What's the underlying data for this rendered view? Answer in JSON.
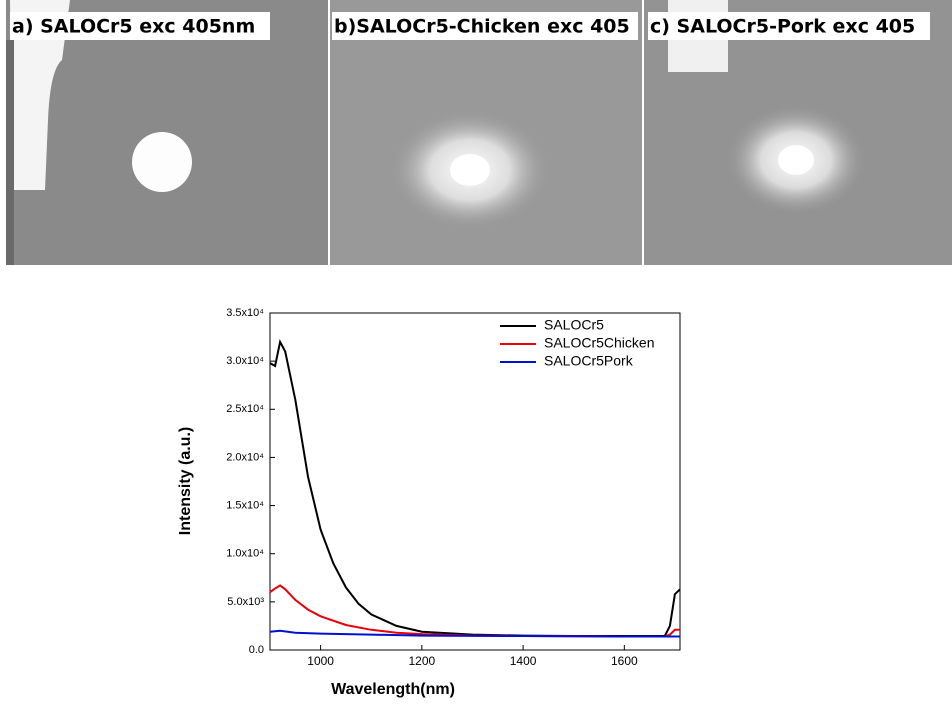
{
  "panels": [
    {
      "label": "a) SALOCr5 exc 405nm"
    },
    {
      "label": "b)SALOCr5-Chicken exc 405"
    },
    {
      "label": "c) SALOCr5-Pork exc 405"
    }
  ],
  "chart_data": {
    "type": "line",
    "xlabel": "Wavelength(nm)",
    "ylabel": "Intensity (a.u.)",
    "xlim": [
      900,
      1710
    ],
    "ylim": [
      0,
      35000
    ],
    "xticks": [
      1000,
      1200,
      1400,
      1600
    ],
    "yticks": [
      {
        "value": 0,
        "label": "0.0"
      },
      {
        "value": 5000,
        "label": "5.0x10³"
      },
      {
        "value": 10000,
        "label": "1.0x10⁴"
      },
      {
        "value": 15000,
        "label": "1.5x10⁴"
      },
      {
        "value": 20000,
        "label": "2.0x10⁴"
      },
      {
        "value": 25000,
        "label": "2.5x10⁴"
      },
      {
        "value": 30000,
        "label": "3.0x10⁴"
      },
      {
        "value": 35000,
        "label": "3.5x10⁴"
      }
    ],
    "legend": "upper right",
    "series": [
      {
        "name": "SALOCr5",
        "color": "#000000",
        "x": [
          900,
          910,
          920,
          930,
          950,
          975,
          1000,
          1025,
          1050,
          1075,
          1100,
          1150,
          1200,
          1300,
          1400,
          1500,
          1600,
          1680,
          1690,
          1700,
          1710
        ],
        "values": [
          29800,
          29500,
          32000,
          31000,
          26000,
          18000,
          12500,
          9000,
          6500,
          4800,
          3700,
          2500,
          1900,
          1600,
          1500,
          1450,
          1450,
          1450,
          2500,
          5800,
          6300
        ]
      },
      {
        "name": "SALOCr5Chicken",
        "color": "#e8000b",
        "x": [
          900,
          910,
          920,
          930,
          950,
          975,
          1000,
          1050,
          1100,
          1150,
          1200,
          1300,
          1400,
          1600,
          1680,
          1690,
          1700,
          1710
        ],
        "values": [
          6000,
          6400,
          6700,
          6300,
          5200,
          4200,
          3500,
          2600,
          2100,
          1800,
          1650,
          1500,
          1450,
          1400,
          1400,
          1600,
          2100,
          2100
        ]
      },
      {
        "name": "SALOCr5Pork",
        "color": "#0010d0",
        "x": [
          900,
          920,
          950,
          1000,
          1100,
          1200,
          1400,
          1600,
          1710
        ],
        "values": [
          1900,
          2000,
          1800,
          1700,
          1600,
          1500,
          1450,
          1400,
          1400
        ]
      }
    ]
  }
}
